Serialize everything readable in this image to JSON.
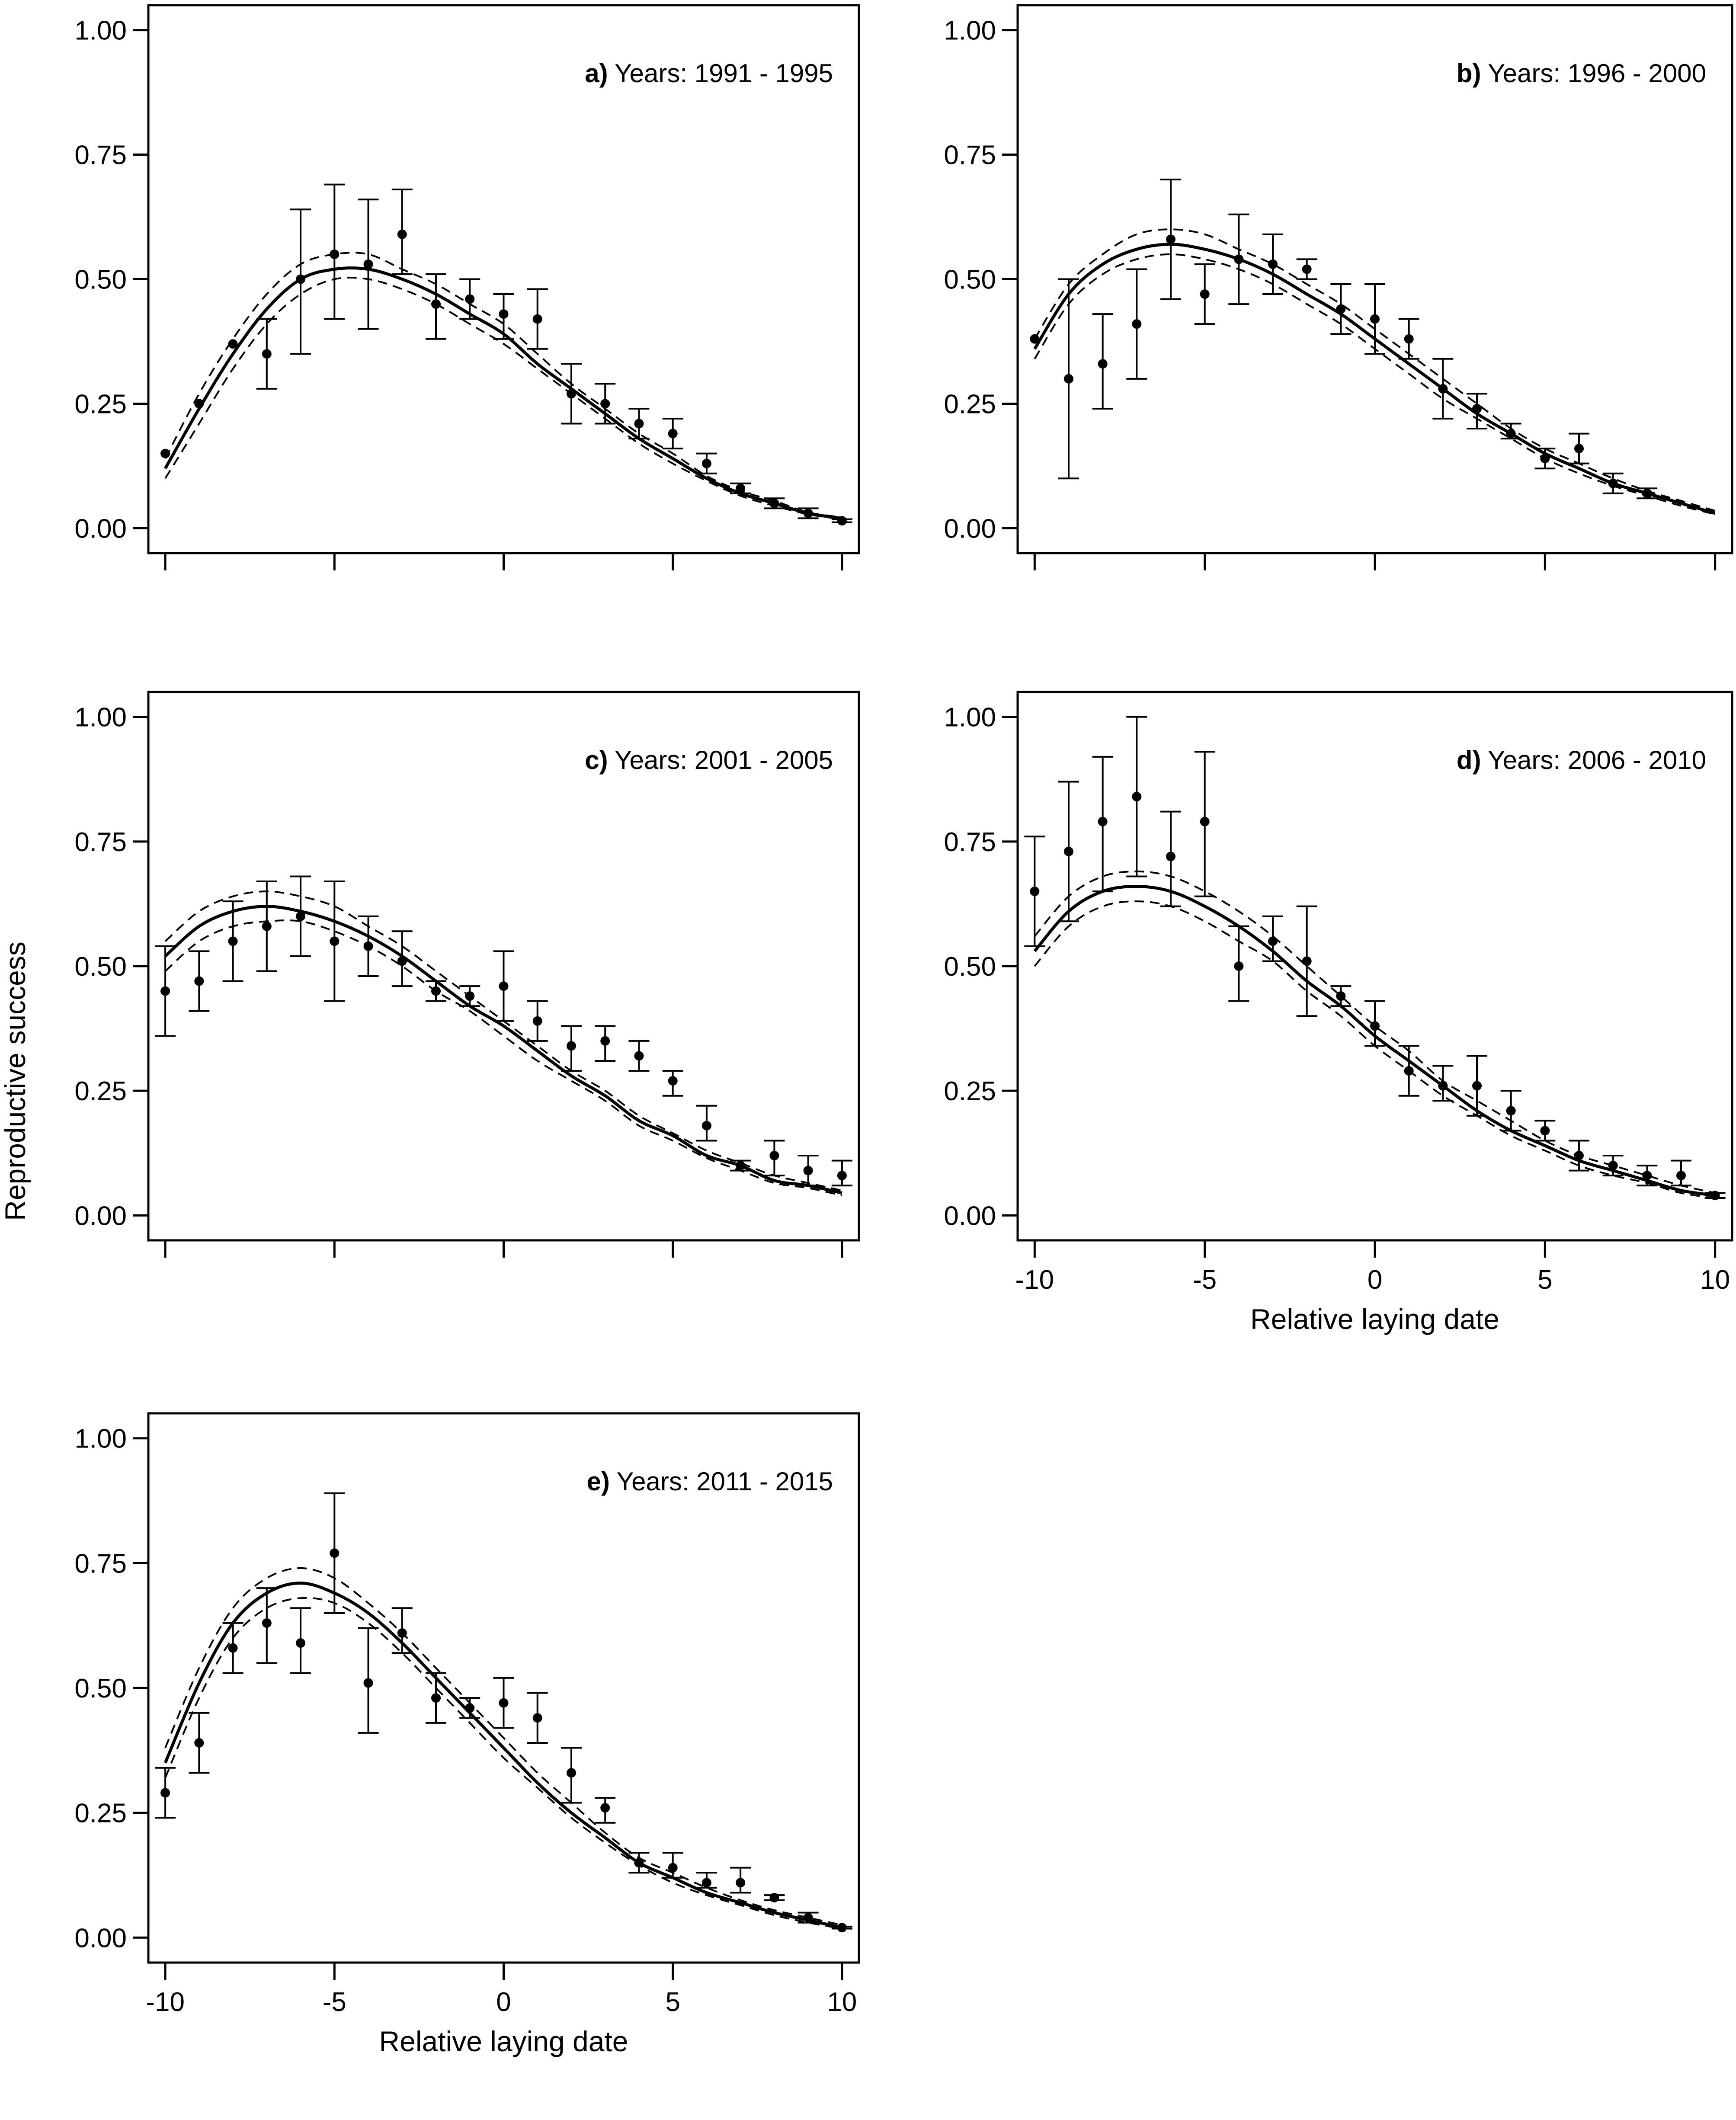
{
  "figure": {
    "ylabel": "Reproductive success",
    "xlabel": "Relative laying date"
  },
  "chart_data": [
    {
      "type": "scatter",
      "panel": "a",
      "title_letter": "a)",
      "title": "Years: 1991 - 1995",
      "xlabel": "",
      "ylabel": "Reproductive success",
      "xlim": [
        -10.5,
        10.5
      ],
      "ylim": [
        -0.05,
        1.05
      ],
      "x_ticks": [
        -10,
        -5,
        0,
        5,
        10
      ],
      "x_tick_labels": [],
      "y_ticks": [
        0,
        0.25,
        0.5,
        0.75,
        1
      ],
      "y_tick_labels": [
        "0.00",
        "0.25",
        "0.50",
        "0.75",
        "1.00"
      ],
      "points": {
        "x": [
          -10,
          -9,
          -8,
          -7,
          -6,
          -5,
          -4,
          -3,
          -2,
          -1,
          0,
          1,
          2,
          3,
          4,
          5,
          6,
          7,
          8,
          9,
          10
        ],
        "y": [
          0.15,
          0.25,
          0.37,
          0.35,
          0.5,
          0.55,
          0.53,
          0.59,
          0.45,
          0.46,
          0.43,
          0.42,
          0.27,
          0.25,
          0.21,
          0.19,
          0.13,
          0.08,
          0.05,
          0.03,
          0.015
        ],
        "lower": [
          null,
          null,
          null,
          0.28,
          0.35,
          0.42,
          0.4,
          0.51,
          0.38,
          0.42,
          0.38,
          0.36,
          0.21,
          0.21,
          0.18,
          0.16,
          0.11,
          0.07,
          0.04,
          0.02,
          0.012
        ],
        "upper": [
          null,
          null,
          null,
          0.42,
          0.64,
          0.69,
          0.66,
          0.68,
          0.51,
          0.5,
          0.47,
          0.48,
          0.33,
          0.29,
          0.24,
          0.22,
          0.15,
          0.09,
          0.06,
          0.04,
          0.018
        ]
      },
      "fit": {
        "x": [
          -10,
          -9,
          -8,
          -7,
          -6,
          -5,
          -4,
          -3,
          -2,
          -1,
          0,
          1,
          2,
          3,
          4,
          5,
          6,
          7,
          8,
          9,
          10
        ],
        "y": [
          0.12,
          0.24,
          0.35,
          0.44,
          0.5,
          0.52,
          0.52,
          0.5,
          0.47,
          0.43,
          0.39,
          0.33,
          0.28,
          0.23,
          0.18,
          0.14,
          0.1,
          0.07,
          0.05,
          0.03,
          0.02
        ],
        "lower": [
          0.1,
          0.21,
          0.32,
          0.41,
          0.47,
          0.5,
          0.5,
          0.48,
          0.45,
          0.41,
          0.37,
          0.32,
          0.27,
          0.22,
          0.17,
          0.13,
          0.095,
          0.065,
          0.045,
          0.028,
          0.018
        ],
        "upper": [
          0.14,
          0.27,
          0.38,
          0.47,
          0.53,
          0.55,
          0.55,
          0.52,
          0.49,
          0.45,
          0.41,
          0.35,
          0.29,
          0.24,
          0.19,
          0.15,
          0.105,
          0.075,
          0.055,
          0.032,
          0.022
        ]
      }
    },
    {
      "type": "scatter",
      "panel": "b",
      "title_letter": "b)",
      "title": "Years: 1996 - 2000",
      "xlabel": "",
      "ylabel": "",
      "xlim": [
        -10.5,
        10.5
      ],
      "ylim": [
        -0.05,
        1.05
      ],
      "x_ticks": [
        -10,
        -5,
        0,
        5,
        10
      ],
      "x_tick_labels": [],
      "y_ticks": [
        0,
        0.25,
        0.5,
        0.75,
        1
      ],
      "y_tick_labels": [
        "0.00",
        "0.25",
        "0.50",
        "0.75",
        "1.00"
      ],
      "points": {
        "x": [
          -10,
          -9,
          -8,
          -7,
          -6,
          -5,
          -4,
          -3,
          -2,
          -1,
          0,
          1,
          2,
          3,
          4,
          5,
          6,
          7,
          8
        ],
        "y": [
          0.38,
          0.3,
          0.33,
          0.41,
          0.58,
          0.47,
          0.54,
          0.53,
          0.52,
          0.44,
          0.42,
          0.38,
          0.28,
          0.24,
          0.19,
          0.14,
          0.16,
          0.09,
          0.07
        ],
        "lower": [
          null,
          0.1,
          0.24,
          0.3,
          0.46,
          0.41,
          0.45,
          0.47,
          0.5,
          0.39,
          0.35,
          0.34,
          0.22,
          0.2,
          0.18,
          0.12,
          0.13,
          0.07,
          0.06
        ],
        "upper": [
          null,
          0.5,
          0.43,
          0.52,
          0.7,
          0.53,
          0.63,
          0.59,
          0.54,
          0.49,
          0.49,
          0.42,
          0.34,
          0.27,
          0.21,
          0.16,
          0.19,
          0.11,
          0.08
        ]
      },
      "fit": {
        "x": [
          -10,
          -9,
          -8,
          -7,
          -6,
          -5,
          -4,
          -3,
          -2,
          -1,
          0,
          1,
          2,
          3,
          4,
          5,
          6,
          7,
          8,
          9,
          10
        ],
        "y": [
          0.36,
          0.47,
          0.53,
          0.56,
          0.57,
          0.56,
          0.54,
          0.51,
          0.47,
          0.43,
          0.38,
          0.33,
          0.28,
          0.23,
          0.19,
          0.15,
          0.12,
          0.09,
          0.07,
          0.05,
          0.03
        ],
        "lower": [
          0.34,
          0.45,
          0.51,
          0.54,
          0.55,
          0.54,
          0.52,
          0.49,
          0.45,
          0.41,
          0.36,
          0.31,
          0.26,
          0.22,
          0.18,
          0.14,
          0.11,
          0.085,
          0.065,
          0.045,
          0.028
        ],
        "upper": [
          0.38,
          0.49,
          0.55,
          0.59,
          0.6,
          0.59,
          0.56,
          0.53,
          0.49,
          0.45,
          0.4,
          0.35,
          0.3,
          0.25,
          0.2,
          0.16,
          0.13,
          0.1,
          0.075,
          0.055,
          0.035
        ]
      }
    },
    {
      "type": "scatter",
      "panel": "c",
      "title_letter": "c)",
      "title": "Years: 2001 - 2005",
      "xlabel": "",
      "ylabel": "",
      "xlim": [
        -10.5,
        10.5
      ],
      "ylim": [
        -0.05,
        1.05
      ],
      "x_ticks": [
        -10,
        -5,
        0,
        5,
        10
      ],
      "x_tick_labels": [],
      "y_ticks": [
        0,
        0.25,
        0.5,
        0.75,
        1
      ],
      "y_tick_labels": [
        "0.00",
        "0.25",
        "0.50",
        "0.75",
        "1.00"
      ],
      "points": {
        "x": [
          -10,
          -9,
          -8,
          -7,
          -6,
          -5,
          -4,
          -3,
          -2,
          -1,
          0,
          1,
          2,
          3,
          4,
          5,
          6,
          7,
          8,
          9,
          10
        ],
        "y": [
          0.45,
          0.47,
          0.55,
          0.58,
          0.6,
          0.55,
          0.54,
          0.51,
          0.45,
          0.44,
          0.46,
          0.39,
          0.34,
          0.35,
          0.32,
          0.27,
          0.18,
          0.1,
          0.12,
          0.09,
          0.08
        ],
        "lower": [
          0.36,
          0.41,
          0.47,
          0.49,
          0.52,
          0.43,
          0.48,
          0.46,
          0.43,
          0.42,
          0.39,
          0.35,
          0.29,
          0.31,
          0.29,
          0.24,
          0.15,
          0.09,
          0.08,
          0.06,
          0.06
        ],
        "upper": [
          0.54,
          0.53,
          0.63,
          0.67,
          0.68,
          0.67,
          0.6,
          0.57,
          0.47,
          0.46,
          0.53,
          0.43,
          0.38,
          0.38,
          0.35,
          0.29,
          0.22,
          0.11,
          0.15,
          0.12,
          0.11
        ]
      },
      "fit": {
        "x": [
          -10,
          -9,
          -8,
          -7,
          -6,
          -5,
          -4,
          -3,
          -2,
          -1,
          0,
          1,
          2,
          3,
          4,
          5,
          6,
          7,
          8,
          9,
          10
        ],
        "y": [
          0.52,
          0.58,
          0.61,
          0.62,
          0.61,
          0.59,
          0.56,
          0.52,
          0.47,
          0.42,
          0.38,
          0.33,
          0.28,
          0.24,
          0.19,
          0.16,
          0.12,
          0.1,
          0.07,
          0.06,
          0.045
        ],
        "lower": [
          0.49,
          0.55,
          0.58,
          0.59,
          0.59,
          0.57,
          0.54,
          0.5,
          0.45,
          0.41,
          0.36,
          0.31,
          0.27,
          0.23,
          0.18,
          0.15,
          0.115,
          0.09,
          0.065,
          0.055,
          0.04
        ],
        "upper": [
          0.55,
          0.61,
          0.64,
          0.65,
          0.64,
          0.62,
          0.58,
          0.54,
          0.49,
          0.44,
          0.39,
          0.34,
          0.29,
          0.25,
          0.2,
          0.165,
          0.13,
          0.105,
          0.08,
          0.065,
          0.05
        ]
      }
    },
    {
      "type": "scatter",
      "panel": "d",
      "title_letter": "d)",
      "title": "Years: 2006 - 2010",
      "xlabel": "Relative laying date",
      "ylabel": "",
      "xlim": [
        -10.5,
        10.5
      ],
      "ylim": [
        -0.05,
        1.05
      ],
      "x_ticks": [
        -10,
        -5,
        0,
        5,
        10
      ],
      "x_tick_labels": [
        "-10",
        "-5",
        "0",
        "5",
        "10"
      ],
      "y_ticks": [
        0,
        0.25,
        0.5,
        0.75,
        1
      ],
      "y_tick_labels": [
        "0.00",
        "0.25",
        "0.50",
        "0.75",
        "1.00"
      ],
      "points": {
        "x": [
          -10,
          -9,
          -8,
          -7,
          -6,
          -5,
          -4,
          -3,
          -2,
          -1,
          0,
          1,
          2,
          3,
          4,
          5,
          6,
          7,
          8,
          9,
          10
        ],
        "y": [
          0.65,
          0.73,
          0.79,
          0.84,
          0.72,
          0.79,
          0.5,
          0.55,
          0.51,
          0.44,
          0.38,
          0.29,
          0.26,
          0.26,
          0.21,
          0.17,
          0.12,
          0.1,
          0.08,
          0.08,
          0.04
        ],
        "lower": [
          0.54,
          0.59,
          0.65,
          0.68,
          0.62,
          0.64,
          0.43,
          0.51,
          0.4,
          0.42,
          0.34,
          0.24,
          0.23,
          0.2,
          0.17,
          0.15,
          0.09,
          0.08,
          0.06,
          0.06,
          0.035
        ],
        "upper": [
          0.76,
          0.87,
          0.92,
          1.0,
          0.81,
          0.93,
          0.58,
          0.6,
          0.62,
          0.46,
          0.43,
          0.34,
          0.3,
          0.32,
          0.25,
          0.19,
          0.15,
          0.12,
          0.1,
          0.11,
          0.045
        ]
      },
      "fit": {
        "x": [
          -10,
          -9,
          -8,
          -7,
          -6,
          -5,
          -4,
          -3,
          -2,
          -1,
          0,
          1,
          2,
          3,
          4,
          5,
          6,
          7,
          8,
          9,
          10
        ],
        "y": [
          0.53,
          0.61,
          0.65,
          0.66,
          0.65,
          0.62,
          0.58,
          0.53,
          0.47,
          0.42,
          0.36,
          0.31,
          0.26,
          0.21,
          0.17,
          0.14,
          0.11,
          0.09,
          0.07,
          0.05,
          0.04
        ],
        "lower": [
          0.5,
          0.58,
          0.62,
          0.63,
          0.62,
          0.59,
          0.55,
          0.51,
          0.45,
          0.4,
          0.34,
          0.29,
          0.24,
          0.2,
          0.16,
          0.13,
          0.1,
          0.08,
          0.065,
          0.045,
          0.035
        ],
        "upper": [
          0.56,
          0.64,
          0.68,
          0.69,
          0.68,
          0.65,
          0.61,
          0.56,
          0.5,
          0.44,
          0.38,
          0.33,
          0.27,
          0.23,
          0.19,
          0.15,
          0.12,
          0.1,
          0.08,
          0.06,
          0.045
        ]
      }
    },
    {
      "type": "scatter",
      "panel": "e",
      "title_letter": "e)",
      "title": "Years: 2011 - 2015",
      "xlabel": "Relative laying date",
      "ylabel": "",
      "xlim": [
        -10.5,
        10.5
      ],
      "ylim": [
        -0.05,
        1.05
      ],
      "x_ticks": [
        -10,
        -5,
        0,
        5,
        10
      ],
      "x_tick_labels": [
        "-10",
        "-5",
        "0",
        "5",
        "10"
      ],
      "y_ticks": [
        0,
        0.25,
        0.5,
        0.75,
        1
      ],
      "y_tick_labels": [
        "0.00",
        "0.25",
        "0.50",
        "0.75",
        "1.00"
      ],
      "points": {
        "x": [
          -10,
          -9,
          -8,
          -7,
          -6,
          -5,
          -4,
          -3,
          -2,
          -1,
          0,
          1,
          2,
          3,
          4,
          5,
          6,
          7,
          8,
          9,
          10
        ],
        "y": [
          0.29,
          0.39,
          0.58,
          0.63,
          0.59,
          0.77,
          0.51,
          0.61,
          0.48,
          0.46,
          0.47,
          0.44,
          0.33,
          0.26,
          0.15,
          0.14,
          0.11,
          0.11,
          0.08,
          0.04,
          0.02
        ],
        "lower": [
          0.24,
          0.33,
          0.53,
          0.55,
          0.53,
          0.65,
          0.41,
          0.57,
          0.43,
          0.44,
          0.42,
          0.39,
          0.27,
          0.23,
          0.13,
          0.12,
          0.1,
          0.09,
          0.075,
          0.03,
          0.018
        ],
        "upper": [
          0.34,
          0.45,
          0.63,
          0.7,
          0.66,
          0.89,
          0.62,
          0.66,
          0.53,
          0.48,
          0.52,
          0.49,
          0.38,
          0.28,
          0.17,
          0.17,
          0.13,
          0.14,
          0.085,
          0.05,
          0.022
        ]
      },
      "fit": {
        "x": [
          -10,
          -9,
          -8,
          -7,
          -6,
          -5,
          -4,
          -3,
          -2,
          -1,
          0,
          1,
          2,
          3,
          4,
          5,
          6,
          7,
          8,
          9,
          10
        ],
        "y": [
          0.35,
          0.51,
          0.63,
          0.69,
          0.71,
          0.69,
          0.65,
          0.59,
          0.52,
          0.45,
          0.38,
          0.31,
          0.25,
          0.2,
          0.15,
          0.12,
          0.09,
          0.07,
          0.05,
          0.035,
          0.02
        ],
        "lower": [
          0.32,
          0.48,
          0.6,
          0.66,
          0.68,
          0.67,
          0.63,
          0.57,
          0.5,
          0.43,
          0.36,
          0.3,
          0.24,
          0.19,
          0.145,
          0.11,
          0.085,
          0.065,
          0.045,
          0.03,
          0.018
        ],
        "upper": [
          0.38,
          0.54,
          0.66,
          0.72,
          0.74,
          0.72,
          0.67,
          0.61,
          0.54,
          0.47,
          0.4,
          0.33,
          0.27,
          0.21,
          0.16,
          0.13,
          0.1,
          0.075,
          0.055,
          0.04,
          0.025
        ]
      }
    }
  ]
}
